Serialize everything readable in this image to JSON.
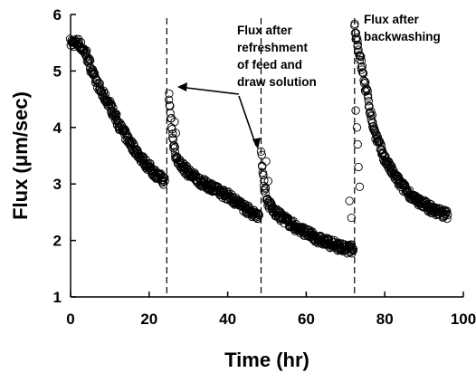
{
  "chart_data": {
    "type": "scatter",
    "xlabel": "Time (hr)",
    "ylabel": "Flux (μm/sec)",
    "xlim": [
      0,
      100
    ],
    "ylim": [
      1,
      6
    ],
    "xticks": [
      "0",
      "20",
      "40",
      "60",
      "80",
      "100"
    ],
    "yticks": [
      "1",
      "2",
      "3",
      "4",
      "5",
      "6"
    ],
    "xtick_values": [
      0,
      20,
      40,
      60,
      80,
      100
    ],
    "ytick_values": [
      1,
      2,
      3,
      4,
      5,
      6
    ],
    "grid": false,
    "marker": "open-circle",
    "dashed_lines_x": [
      24.5,
      48.5,
      72.3
    ],
    "segments": [
      {
        "x": [
          0,
          2,
          4,
          6,
          8,
          10,
          12,
          14,
          16,
          18,
          20,
          22,
          24
        ],
        "y": [
          5.5,
          5.5,
          5.3,
          4.9,
          4.6,
          4.4,
          4.1,
          3.85,
          3.65,
          3.45,
          3.3,
          3.15,
          3.05
        ]
      },
      {
        "x": [
          25,
          25.5,
          26,
          27,
          28,
          30,
          32,
          34,
          36,
          38,
          40,
          42,
          44,
          46,
          48
        ],
        "y": [
          4.55,
          4.2,
          3.8,
          3.45,
          3.35,
          3.2,
          3.1,
          3.0,
          2.95,
          2.85,
          2.8,
          2.7,
          2.6,
          2.5,
          2.45
        ]
      },
      {
        "x": [
          48.5,
          49,
          49.5,
          50,
          52,
          54,
          56,
          58,
          60,
          62,
          64,
          66,
          68,
          70,
          72
        ],
        "y": [
          3.5,
          3.2,
          2.9,
          2.7,
          2.5,
          2.4,
          2.3,
          2.2,
          2.15,
          2.05,
          2.0,
          1.95,
          1.9,
          1.85,
          1.85
        ]
      },
      {
        "x": [
          72.3,
          72.8,
          73.3,
          74,
          75,
          76,
          77,
          78,
          80,
          82,
          84,
          86,
          88,
          90,
          92,
          94,
          96
        ],
        "y": [
          5.8,
          5.6,
          5.4,
          5.15,
          4.75,
          4.4,
          4.05,
          3.8,
          3.45,
          3.2,
          3.0,
          2.85,
          2.7,
          2.65,
          2.55,
          2.5,
          2.45
        ]
      }
    ],
    "scattered_points": [
      {
        "x": 71.0,
        "y": 2.7
      },
      {
        "x": 71.5,
        "y": 2.4
      },
      {
        "x": 71.3,
        "y": 1.9
      },
      {
        "x": 72.6,
        "y": 4.3
      },
      {
        "x": 72.9,
        "y": 4.0
      },
      {
        "x": 73.1,
        "y": 3.7
      },
      {
        "x": 73.3,
        "y": 3.3
      },
      {
        "x": 73.6,
        "y": 2.95
      },
      {
        "x": 26.5,
        "y": 4.1
      },
      {
        "x": 26.8,
        "y": 3.9
      },
      {
        "x": 49.8,
        "y": 3.4
      },
      {
        "x": 50.3,
        "y": 3.05
      }
    ],
    "annotations": [
      {
        "lines": [
          "Flux after",
          "refreshment",
          "of feed and",
          "draw solution"
        ]
      },
      {
        "lines": [
          "Flux after",
          "backwashing"
        ]
      }
    ]
  }
}
